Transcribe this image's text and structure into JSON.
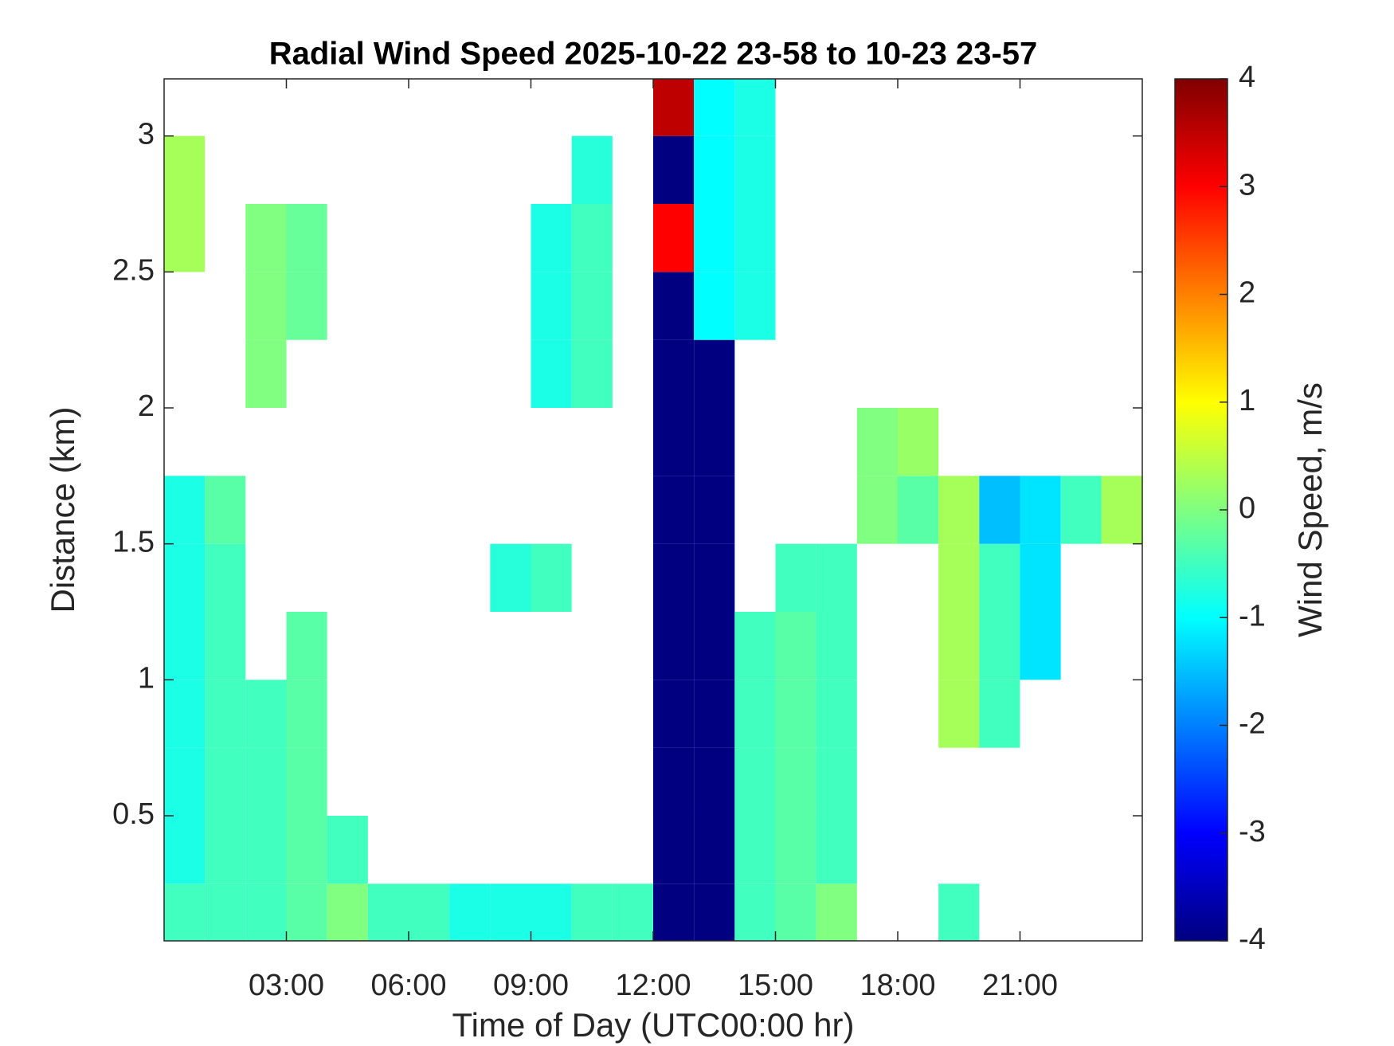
{
  "chart_data": {
    "type": "heatmap",
    "title": "Radial Wind Speed 2025-10-22 23-58 to 10-23 23-57",
    "x_label": "Time of Day (UTC00:00 hr)",
    "y_label": "Distance (km)",
    "colorbar_label": "Wind Speed, m/s",
    "colormap": "jet",
    "xlim": [
      0,
      24
    ],
    "xticks": [
      {
        "value": 3,
        "label": "03:00"
      },
      {
        "value": 6,
        "label": "06:00"
      },
      {
        "value": 9,
        "label": "09:00"
      },
      {
        "value": 12,
        "label": "12:00"
      },
      {
        "value": 15,
        "label": "15:00"
      },
      {
        "value": 18,
        "label": "18:00"
      },
      {
        "value": 21,
        "label": "21:00"
      }
    ],
    "ylim": [
      0.04,
      3.21
    ],
    "yticks": [
      0.5,
      1,
      1.5,
      2,
      2.5,
      3
    ],
    "clim": [
      -4,
      4
    ],
    "cticks": [
      -4,
      -3,
      -2,
      -1,
      0,
      1,
      2,
      3,
      4
    ],
    "x_bins": [
      0,
      1,
      2,
      3,
      4,
      5,
      6,
      7,
      8,
      9,
      10,
      11,
      12,
      13,
      14,
      15,
      16,
      17,
      18,
      19,
      20,
      21,
      22,
      23,
      24
    ],
    "y_bins": [
      0.04,
      0.25,
      0.5,
      0.75,
      1,
      1.25,
      1.5,
      1.75,
      2,
      2.25,
      2.5,
      2.75,
      3,
      3.21
    ],
    "values": [
      [
        -0.5,
        -0.8,
        -0.8,
        -0.8,
        -0.8,
        -0.8,
        -0.8,
        null,
        null,
        null,
        0.3,
        0.3,
        null
      ],
      [
        -0.5,
        -0.5,
        -0.5,
        -0.5,
        -0.5,
        -0.5,
        -0.3,
        null,
        null,
        null,
        null,
        null,
        null
      ],
      [
        -0.5,
        -0.5,
        -0.5,
        -0.5,
        null,
        null,
        null,
        null,
        0,
        0,
        0,
        null,
        null
      ],
      [
        -0.3,
        -0.3,
        -0.3,
        -0.3,
        -0.3,
        null,
        null,
        null,
        null,
        -0.2,
        -0.2,
        null,
        null
      ],
      [
        0,
        -0.5,
        null,
        null,
        null,
        null,
        null,
        null,
        null,
        null,
        null,
        null,
        null
      ],
      [
        -0.5,
        null,
        null,
        null,
        null,
        null,
        null,
        null,
        null,
        null,
        null,
        null,
        null
      ],
      [
        -0.5,
        null,
        null,
        null,
        null,
        null,
        null,
        null,
        null,
        null,
        null,
        null,
        null
      ],
      [
        -0.8,
        null,
        null,
        null,
        null,
        null,
        null,
        null,
        null,
        null,
        null,
        null,
        null
      ],
      [
        -0.8,
        null,
        null,
        null,
        null,
        -0.7,
        null,
        null,
        null,
        null,
        null,
        null,
        null
      ],
      [
        -0.8,
        null,
        null,
        null,
        null,
        -0.5,
        null,
        null,
        -0.8,
        -0.8,
        -0.8,
        null,
        null
      ],
      [
        -0.5,
        null,
        null,
        null,
        null,
        null,
        null,
        null,
        -0.5,
        -0.5,
        -0.5,
        -0.7,
        null
      ],
      [
        -0.5,
        null,
        null,
        null,
        null,
        null,
        null,
        null,
        null,
        null,
        null,
        null,
        null
      ],
      [
        -4,
        -4,
        -4,
        -4,
        -4,
        -4,
        -4,
        -4,
        -4,
        -4,
        3,
        -4,
        3.5
      ],
      [
        -4,
        -4,
        -4,
        -4,
        -4,
        -4,
        -4,
        -4,
        -4,
        -1,
        -1,
        -1,
        -1
      ],
      [
        -0.5,
        -0.5,
        -0.5,
        -0.5,
        -0.5,
        null,
        null,
        null,
        null,
        -0.8,
        -0.8,
        -0.8,
        -0.8
      ],
      [
        -0.3,
        -0.3,
        -0.3,
        -0.3,
        -0.3,
        -0.5,
        null,
        null,
        null,
        null,
        null,
        null,
        null
      ],
      [
        0,
        -0.5,
        -0.5,
        -0.5,
        -0.5,
        -0.5,
        null,
        null,
        null,
        null,
        null,
        null,
        null
      ],
      [
        null,
        null,
        null,
        null,
        null,
        null,
        0,
        0,
        null,
        null,
        null,
        null,
        null
      ],
      [
        null,
        null,
        null,
        null,
        null,
        null,
        -0.3,
        0.2,
        null,
        null,
        null,
        null,
        null
      ],
      [
        -0.5,
        null,
        null,
        0.3,
        0.3,
        0.3,
        0.3,
        null,
        null,
        null,
        null,
        null,
        null
      ],
      [
        null,
        null,
        null,
        -0.5,
        -0.5,
        -0.5,
        -1.5,
        null,
        null,
        null,
        null,
        null,
        null
      ],
      [
        null,
        null,
        null,
        null,
        -1.2,
        -1.2,
        -1.2,
        null,
        null,
        null,
        null,
        null,
        null
      ],
      [
        null,
        null,
        null,
        null,
        null,
        null,
        -0.5,
        null,
        null,
        null,
        null,
        null,
        null
      ],
      [
        null,
        null,
        null,
        null,
        null,
        null,
        0.3,
        null,
        null,
        null,
        null,
        null,
        null
      ]
    ]
  }
}
